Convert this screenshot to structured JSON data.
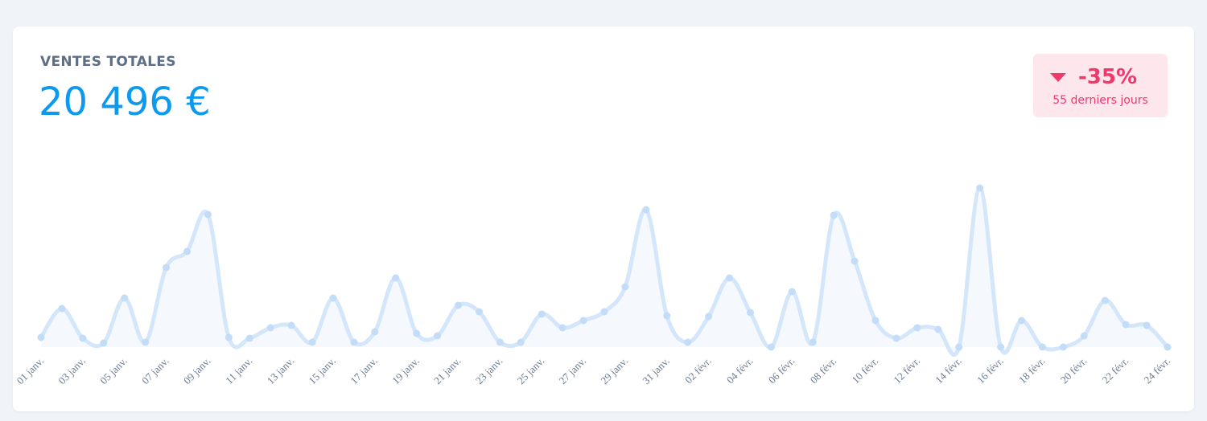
{
  "card": {
    "title": "VENTES TOTALES",
    "total": "20 496 €",
    "change": "-35%",
    "period": "55 derniers jours"
  },
  "chart_data": {
    "type": "area",
    "categories": [
      "01 janv.",
      null,
      "03 janv.",
      null,
      "05 janv.",
      null,
      "07 janv.",
      null,
      "09 janv.",
      null,
      "11 janv.",
      null,
      "13 janv.",
      null,
      "15 janv.",
      null,
      "17 janv.",
      null,
      "19 janv.",
      null,
      "21 janv.",
      null,
      "23 janv.",
      null,
      "25 janv.",
      null,
      "27 janv.",
      null,
      "29 janv.",
      null,
      "31 janv.",
      null,
      "02 févr.",
      null,
      "04 févr.",
      null,
      "06 févr.",
      null,
      "08 févr.",
      null,
      "10 févr.",
      null,
      "12 févr.",
      null,
      "14 févr.",
      null,
      "16 févr.",
      null,
      "18 févr.",
      null,
      "20 févr.",
      null,
      "22 févr.",
      null,
      "24 févr."
    ],
    "values": [
      12,
      48,
      11,
      5,
      61,
      6,
      99,
      119,
      165,
      12,
      11,
      24,
      27,
      6,
      61,
      6,
      19,
      86,
      17,
      14,
      52,
      44,
      6,
      6,
      41,
      24,
      33,
      44,
      75,
      171,
      39,
      6,
      38,
      86,
      43,
      0,
      69,
      6,
      164,
      107,
      33,
      11,
      24,
      22,
      0,
      198,
      0,
      33,
      0,
      0,
      14,
      58,
      28,
      27,
      0
    ],
    "color": "#d4e6fa"
  }
}
